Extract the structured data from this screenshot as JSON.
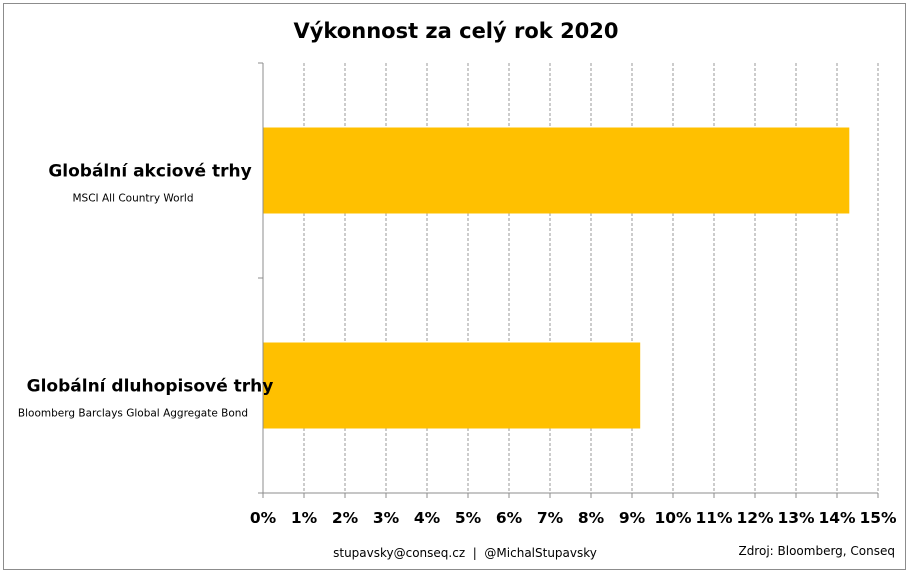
{
  "chart_data": {
    "type": "bar",
    "orientation": "horizontal",
    "title": "Výkonnost za celý rok 2020",
    "categories": [
      {
        "label": "Globální akciové trhy",
        "sublabel": "MSCI All Country World"
      },
      {
        "label": "Globální dluhopisové trhy",
        "sublabel": "Bloomberg Barclays Global Aggregate Bond"
      }
    ],
    "values": [
      14.3,
      9.2
    ],
    "xlim": [
      0,
      15
    ],
    "xticks": [
      0,
      1,
      2,
      3,
      4,
      5,
      6,
      7,
      8,
      9,
      10,
      11,
      12,
      13,
      14,
      15
    ],
    "tick_suffix": "%",
    "grid": "vertical-dashed",
    "bar_color": "#FFC000"
  },
  "footer": {
    "contact": "stupavsky@conseq.cz  |  @MichalStupavsky",
    "source": "Zdroj: Bloomberg, Conseq"
  }
}
